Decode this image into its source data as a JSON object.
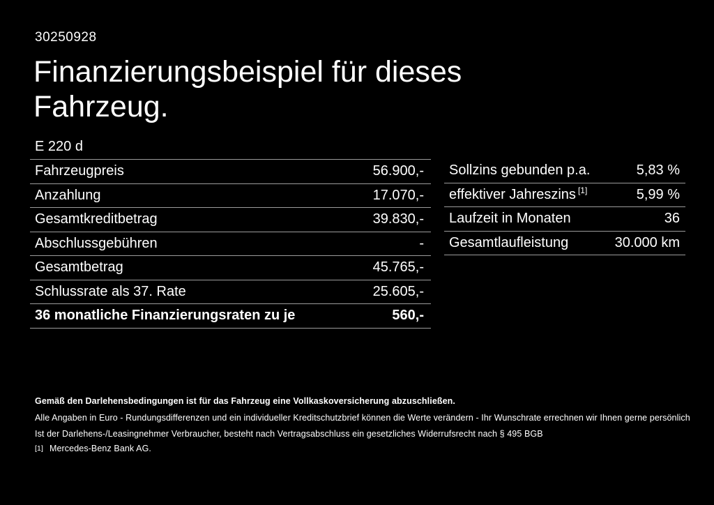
{
  "page": {
    "background": "#000000",
    "text_color": "#ffffff",
    "divider_color": "#9c9c9c"
  },
  "header": {
    "reference_number": "30250928",
    "title_line1": "Finanzierungsbeispiel für dieses",
    "title_line2": "Fahrzeug.",
    "vehicle_model": "E 220 d"
  },
  "finance_table": {
    "rows": [
      {
        "label": "Fahrzeugpreis",
        "value": "56.900,-"
      },
      {
        "label": "Anzahlung",
        "value": "17.070,-"
      },
      {
        "label": "Gesamtkreditbetrag",
        "value": "39.830,-"
      },
      {
        "label": "Abschlussgebühren",
        "value": "-"
      },
      {
        "label": "Gesamtbetrag",
        "value": "45.765,-"
      },
      {
        "label": "Schlussrate als 37. Rate",
        "value": "25.605,-"
      },
      {
        "label": "36 monatliche Finanzierungsraten zu je",
        "value": "560,-"
      }
    ]
  },
  "conditions_table": {
    "rows": [
      {
        "label": "Sollzins gebunden p.a.",
        "sup": "",
        "value": "5,83 %"
      },
      {
        "label": "effektiver Jahreszins",
        "sup": "[1]",
        "value": "5,99 %"
      },
      {
        "label": "Laufzeit in Monaten",
        "sup": "",
        "value": "36"
      },
      {
        "label": "Gesamtlaufleistung",
        "sup": "",
        "value": "30.000 km"
      }
    ]
  },
  "footer": {
    "bold_note": "Gemäß den Darlehensbedingungen ist für das Fahrzeug eine Vollkaskoversicherung abzuschließen.",
    "note_line1": "Alle Angaben in Euro - Rundungsdifferenzen und ein individueller Kreditschutzbrief können die Werte verändern - Ihr Wunschrate errechnen wir Ihnen gerne persönlich",
    "note_line2": "Ist der Darlehens-/Leasingnehmer Verbraucher, besteht nach Vertragsabschluss ein gesetzliches Widerrufsrecht nach § 495 BGB",
    "footnote_marker": "[1]",
    "footnote_text": "Mercedes-Benz Bank AG."
  }
}
